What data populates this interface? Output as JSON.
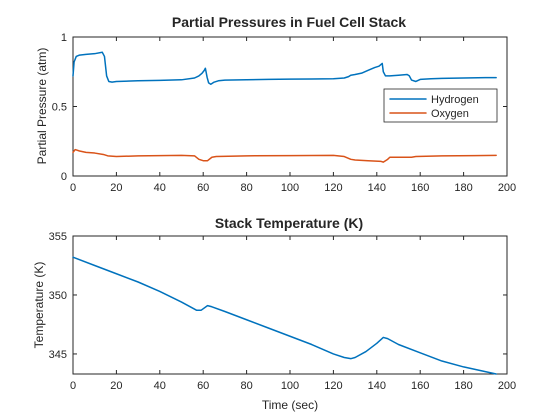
{
  "chart_data": [
    {
      "type": "line",
      "title": "Partial Pressures in Fuel Cell Stack",
      "xlabel": "",
      "ylabel": "Partial Pressure (atm)",
      "xlim": [
        0,
        200
      ],
      "ylim": [
        0,
        1
      ],
      "xticks": [
        0,
        20,
        40,
        60,
        80,
        100,
        120,
        140,
        160,
        180,
        200
      ],
      "yticks": [
        0,
        0.5,
        1
      ],
      "ytick_labels": [
        "0",
        "0.5",
        "1"
      ],
      "grid": false,
      "legend_position": "right",
      "series": [
        {
          "name": "Hydrogen",
          "color": "#0072BD",
          "points": [
            [
              0,
              0.72
            ],
            [
              0.5,
              0.82
            ],
            [
              1.5,
              0.86
            ],
            [
              3,
              0.87
            ],
            [
              6,
              0.875
            ],
            [
              10,
              0.88
            ],
            [
              13.5,
              0.89
            ],
            [
              14.5,
              0.86
            ],
            [
              15.5,
              0.72
            ],
            [
              16.5,
              0.68
            ],
            [
              18,
              0.675
            ],
            [
              20,
              0.68
            ],
            [
              30,
              0.685
            ],
            [
              40,
              0.688
            ],
            [
              50,
              0.692
            ],
            [
              56,
              0.705
            ],
            [
              58,
              0.72
            ],
            [
              59.5,
              0.74
            ],
            [
              60.5,
              0.76
            ],
            [
              61,
              0.775
            ],
            [
              61.8,
              0.71
            ],
            [
              62.5,
              0.67
            ],
            [
              63.5,
              0.66
            ],
            [
              65,
              0.675
            ],
            [
              67,
              0.685
            ],
            [
              70,
              0.69
            ],
            [
              80,
              0.692
            ],
            [
              90,
              0.695
            ],
            [
              100,
              0.697
            ],
            [
              110,
              0.698
            ],
            [
              120,
              0.7
            ],
            [
              125,
              0.705
            ],
            [
              127,
              0.715
            ],
            [
              128,
              0.725
            ],
            [
              130,
              0.73
            ],
            [
              133,
              0.74
            ],
            [
              136,
              0.76
            ],
            [
              139,
              0.78
            ],
            [
              141,
              0.79
            ],
            [
              142.5,
              0.81
            ],
            [
              143,
              0.75
            ],
            [
              144,
              0.72
            ],
            [
              146,
              0.72
            ],
            [
              150,
              0.725
            ],
            [
              154,
              0.73
            ],
            [
              155,
              0.72
            ],
            [
              156,
              0.69
            ],
            [
              158,
              0.68
            ],
            [
              160,
              0.695
            ],
            [
              165,
              0.7
            ],
            [
              170,
              0.702
            ],
            [
              180,
              0.705
            ],
            [
              190,
              0.708
            ],
            [
              195,
              0.708
            ]
          ]
        },
        {
          "name": "Oxygen",
          "color": "#D95319",
          "points": [
            [
              0,
              0.17
            ],
            [
              1,
              0.19
            ],
            [
              3,
              0.18
            ],
            [
              6,
              0.17
            ],
            [
              10,
              0.165
            ],
            [
              14,
              0.155
            ],
            [
              16,
              0.145
            ],
            [
              20,
              0.14
            ],
            [
              30,
              0.145
            ],
            [
              40,
              0.147
            ],
            [
              50,
              0.148
            ],
            [
              56,
              0.145
            ],
            [
              58,
              0.12
            ],
            [
              60,
              0.11
            ],
            [
              62,
              0.11
            ],
            [
              64,
              0.135
            ],
            [
              66,
              0.14
            ],
            [
              80,
              0.145
            ],
            [
              100,
              0.147
            ],
            [
              120,
              0.148
            ],
            [
              125,
              0.14
            ],
            [
              128,
              0.12
            ],
            [
              130,
              0.115
            ],
            [
              136,
              0.11
            ],
            [
              142,
              0.105
            ],
            [
              143,
              0.1
            ],
            [
              145,
              0.12
            ],
            [
              146,
              0.135
            ],
            [
              150,
              0.135
            ],
            [
              156,
              0.135
            ],
            [
              158,
              0.14
            ],
            [
              170,
              0.145
            ],
            [
              185,
              0.147
            ],
            [
              195,
              0.148
            ]
          ]
        }
      ]
    },
    {
      "type": "line",
      "title": "Stack Temperature (K)",
      "xlabel": "Time (sec)",
      "ylabel": "Temperature (K)",
      "xlim": [
        0,
        200
      ],
      "ylim": [
        343.3,
        355
      ],
      "xticks": [
        0,
        20,
        40,
        60,
        80,
        100,
        120,
        140,
        160,
        180,
        200
      ],
      "yticks": [
        345,
        350,
        355
      ],
      "ytick_labels": [
        "345",
        "350",
        "355"
      ],
      "grid": false,
      "series": [
        {
          "color": "#0072BD",
          "points": [
            [
              0,
              353.2
            ],
            [
              10,
              352.5
            ],
            [
              20,
              351.8
            ],
            [
              30,
              351.1
            ],
            [
              40,
              350.3
            ],
            [
              50,
              349.4
            ],
            [
              55,
              348.9
            ],
            [
              57,
              348.7
            ],
            [
              59,
              348.7
            ],
            [
              62,
              349.1
            ],
            [
              64,
              349.0
            ],
            [
              70,
              348.6
            ],
            [
              80,
              347.9
            ],
            [
              90,
              347.2
            ],
            [
              100,
              346.5
            ],
            [
              110,
              345.8
            ],
            [
              120,
              345.0
            ],
            [
              125,
              344.7
            ],
            [
              128,
              344.6
            ],
            [
              130,
              344.7
            ],
            [
              135,
              345.2
            ],
            [
              140,
              345.9
            ],
            [
              143,
              346.4
            ],
            [
              145,
              346.3
            ],
            [
              150,
              345.8
            ],
            [
              160,
              345.1
            ],
            [
              170,
              344.4
            ],
            [
              180,
              343.9
            ],
            [
              190,
              343.5
            ],
            [
              195,
              343.3
            ]
          ]
        }
      ]
    }
  ]
}
